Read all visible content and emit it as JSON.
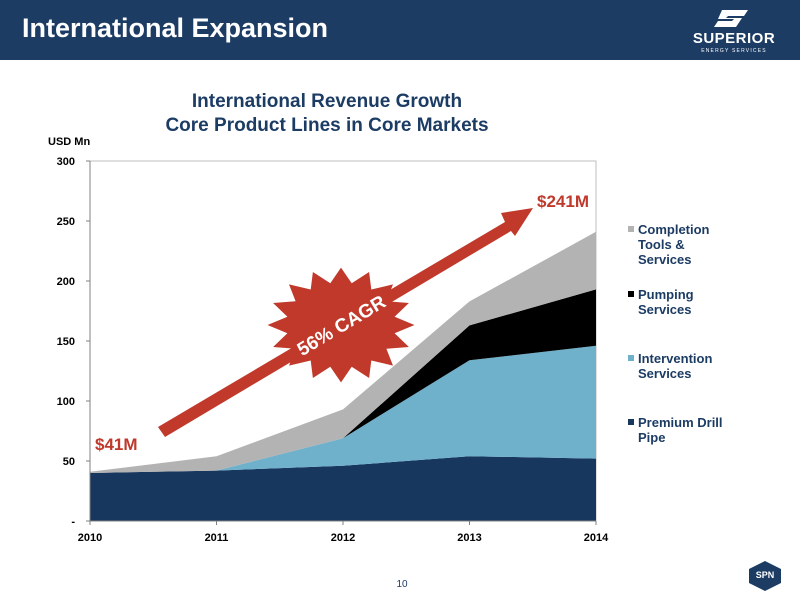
{
  "header": {
    "title": "International Expansion",
    "logo_word": "SUPERIOR",
    "logo_subword": "ENERGY SERVICES"
  },
  "colors": {
    "header_bg": "#1c3c64",
    "premium_drill_pipe": "#17375e",
    "intervention": "#6fb0cb",
    "pumping": "#000000",
    "completion": "#b3b3b3",
    "arrow": "#c0392b"
  },
  "chart_data": {
    "type": "area",
    "stacked": true,
    "title_lines": [
      "International Revenue Growth",
      "Core Product Lines in Core Markets"
    ],
    "ylabel": "USD Mn",
    "x": [
      "2010",
      "2011",
      "2012",
      "2013",
      "2014"
    ],
    "ylim": [
      0,
      300
    ],
    "yticks": [
      0,
      50,
      100,
      150,
      200,
      250,
      300
    ],
    "ytick_labels": [
      "-",
      "50",
      "100",
      "150",
      "200",
      "250",
      "300"
    ],
    "grid": false,
    "legend_position": "right",
    "series": [
      {
        "name": "Premium Drill Pipe",
        "values": [
          40,
          42,
          46,
          54,
          52
        ],
        "color": "#17375e"
      },
      {
        "name": "Intervention Services",
        "values": [
          0,
          0,
          23,
          80,
          94
        ],
        "color": "#6fb0cb"
      },
      {
        "name": "Pumping Services",
        "values": [
          0,
          0,
          0,
          29,
          47
        ],
        "color": "#000000"
      },
      {
        "name": "Completion Tools & Services",
        "values": [
          1,
          12,
          24,
          20,
          48
        ],
        "color": "#b3b3b3"
      }
    ],
    "legend_order": [
      "Completion Tools & Services",
      "Pumping Services",
      "Intervention Services",
      "Premium Drill Pipe"
    ],
    "legend_labels": {
      "Completion Tools & Services": [
        "Completion",
        "Tools &",
        "Services"
      ],
      "Pumping Services": [
        "Pumping",
        "Services"
      ],
      "Intervention Services": [
        "Intervention",
        "Services"
      ],
      "Premium Drill Pipe": [
        "Premium Drill",
        "Pipe"
      ]
    },
    "annotations": {
      "start_value": "$41M",
      "end_value": "$241M",
      "cagr": "56% CAGR"
    }
  },
  "footer": {
    "page_number": "10",
    "badge": "SPN"
  }
}
